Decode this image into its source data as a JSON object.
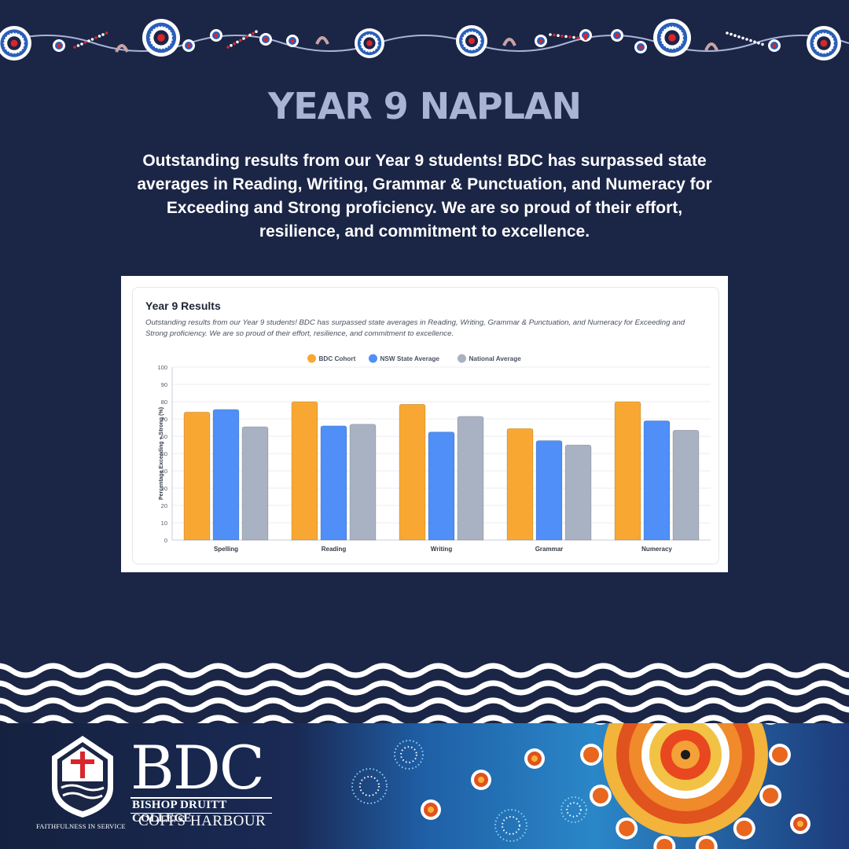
{
  "page": {
    "headline": "YEAR 9 NAPLAN",
    "intro": "Outstanding results from our Year 9 students! BDC has surpassed state averages in Reading, Writing, Grammar & Punctuation, and Numeracy for Exceeding and Strong proficiency. We are so proud of their effort, resilience, and commitment to excellence."
  },
  "card": {
    "title": "Year 9 Results",
    "description": "Outstanding results from our Year 9 students! BDC has surpassed state averages in Reading, Writing, Grammar & Punctuation, and Numeracy for Exceeding and Strong proficiency. We are so proud of their effort, resilience, and commitment to excellence."
  },
  "chart_data": {
    "type": "bar",
    "categories": [
      "Spelling",
      "Reading",
      "Writing",
      "Grammar",
      "Numeracy"
    ],
    "series": [
      {
        "name": "BDC Cohort",
        "values": [
          74,
          80,
          78.5,
          64.5,
          80
        ],
        "color": "#f8a832"
      },
      {
        "name": "NSW State Average",
        "values": [
          75.5,
          66,
          62.5,
          57.5,
          69
        ],
        "color": "#4f8ff7"
      },
      {
        "name": "National Average",
        "values": [
          65.5,
          67,
          71.5,
          55,
          63.5
        ],
        "color": "#a9b2c3"
      }
    ],
    "ylabel": "Percentage Exceeding + Strong (%)",
    "xlabel": "",
    "ylim": [
      0,
      100
    ],
    "yticks": [
      0,
      10,
      20,
      30,
      40,
      50,
      60,
      70,
      80,
      90,
      100
    ],
    "grid": true,
    "legend_position": "top-center"
  },
  "branding": {
    "logo_letters": "BDC",
    "college_name": "BISHOP DRUITT COLLEGE",
    "location": "COFFS HARBOUR",
    "motto": "FAITHFULNESS IN SERVICE"
  },
  "colors": {
    "background": "#1b2546",
    "headline": "#a9b3d6",
    "accent_red": "#d8262c"
  }
}
